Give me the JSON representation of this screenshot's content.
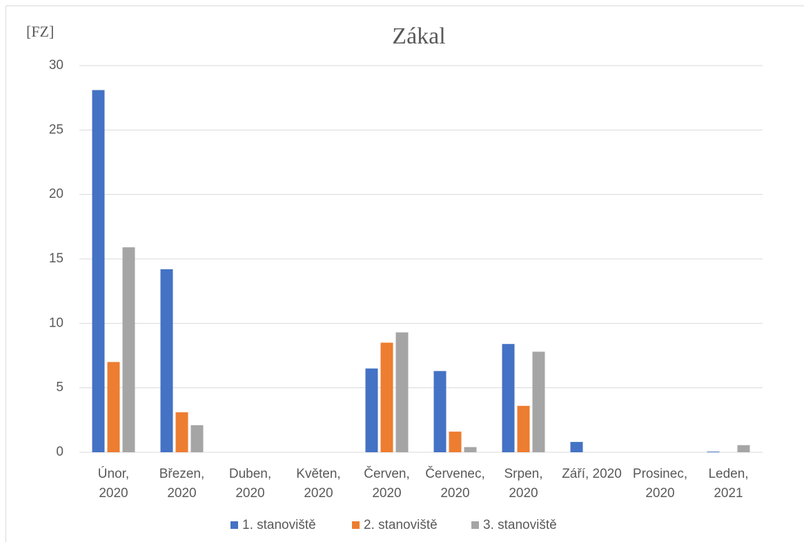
{
  "chart_data": {
    "type": "bar",
    "title": "Zákal",
    "y_label": "[FZ]",
    "categories": [
      [
        "Únor,",
        "2020"
      ],
      [
        "Březen,",
        "2020"
      ],
      [
        "Duben,",
        "2020"
      ],
      [
        "Květen,",
        "2020"
      ],
      [
        "Červen,",
        "2020"
      ],
      [
        "Červenec,",
        "2020"
      ],
      [
        "Srpen,",
        "2020"
      ],
      [
        "Září, 2020"
      ],
      [
        "Prosinec,",
        "2020"
      ],
      [
        "Leden,",
        "2021"
      ]
    ],
    "series": [
      {
        "name": "1. stanoviště",
        "color": "#4472c4",
        "values": [
          28.1,
          14.2,
          0,
          0,
          6.5,
          6.3,
          8.4,
          0.8,
          0,
          0.05
        ]
      },
      {
        "name": "2. stanoviště",
        "color": "#ed7d31",
        "values": [
          7.0,
          3.1,
          0,
          0,
          8.5,
          1.6,
          3.6,
          0,
          0,
          0
        ]
      },
      {
        "name": "3. stanoviště",
        "color": "#a5a5a5",
        "values": [
          15.9,
          2.1,
          0,
          0,
          9.3,
          0.4,
          7.8,
          0,
          0,
          0.55
        ]
      }
    ],
    "ylim": [
      0,
      30
    ],
    "yticks": [
      0,
      5,
      10,
      15,
      20,
      25,
      30
    ],
    "grid": true,
    "legend": "bottom"
  }
}
